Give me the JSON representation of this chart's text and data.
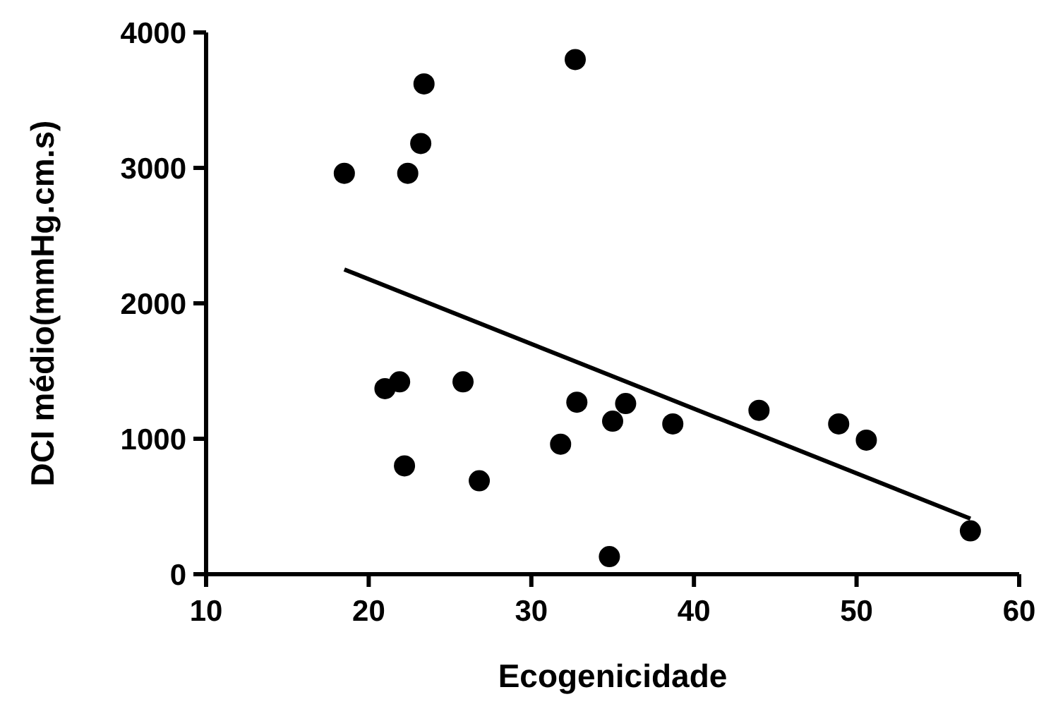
{
  "chart_data": {
    "type": "scatter",
    "xlabel": "Ecogenicidade",
    "ylabel": "DCI médio(mmHg.cm.s)",
    "xlim": [
      10,
      60
    ],
    "xticks": [
      10,
      20,
      30,
      40,
      50,
      60
    ],
    "ylim": [
      0,
      4000
    ],
    "yticks": [
      0,
      1000,
      2000,
      3000,
      4000
    ],
    "grid": false,
    "marker": "circle",
    "series": [
      {
        "color": "#000000",
        "x": [
          18.5,
          21.0,
          21.9,
          22.2,
          22.4,
          23.2,
          23.4,
          25.8,
          26.8,
          31.8,
          32.7,
          32.8,
          34.8,
          35.0,
          35.8,
          38.7,
          44.0,
          48.9,
          50.6,
          57.0
        ],
        "values": [
          2960,
          1370,
          1420,
          800,
          2960,
          3180,
          3620,
          1420,
          690,
          960,
          3800,
          1270,
          130,
          1130,
          1260,
          1110,
          1210,
          1110,
          990,
          320
        ]
      },
      {
        "type": "line",
        "color": "#000000",
        "x": [
          18.5,
          57.0
        ],
        "values": [
          2250,
          410
        ],
        "marker": "none",
        "line_style": "solid"
      }
    ]
  }
}
